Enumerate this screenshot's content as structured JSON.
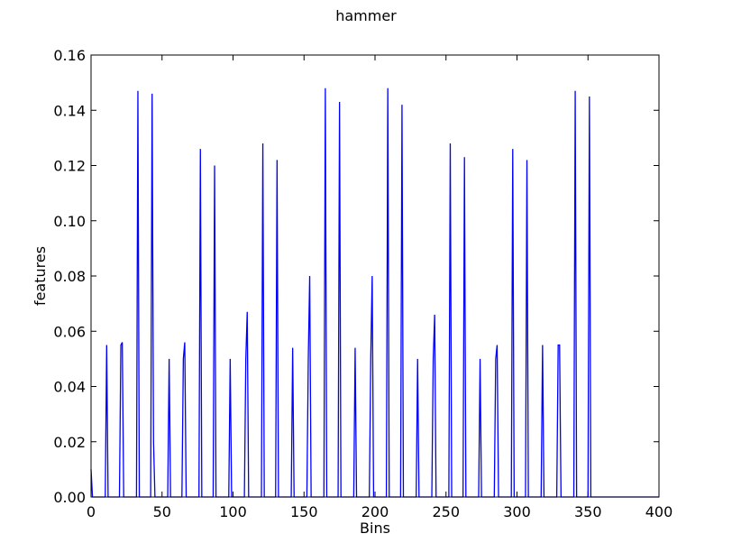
{
  "chart_data": {
    "type": "line",
    "title": "hammer",
    "xlabel": "Bins",
    "ylabel": "features",
    "xlim": [
      0,
      400
    ],
    "ylim": [
      0,
      0.16
    ],
    "grid": false,
    "x_ticks": [
      0,
      50,
      100,
      150,
      200,
      250,
      300,
      350,
      400
    ],
    "x_tick_labels": [
      "0",
      "50",
      "100",
      "150",
      "200",
      "250",
      "300",
      "350",
      "400"
    ],
    "y_ticks": [
      0,
      0.02,
      0.04,
      0.06,
      0.08,
      0.1,
      0.12,
      0.14,
      0.16
    ],
    "y_tick_labels": [
      "0.00",
      "0.02",
      "0.04",
      "0.06",
      "0.08",
      "0.10",
      "0.12",
      "0.14",
      "0.16"
    ],
    "series": [
      {
        "color": "#0000ff",
        "x": [
          0,
          1,
          2,
          10,
          11,
          12,
          20,
          21,
          22,
          23,
          32,
          33,
          34,
          42,
          43,
          44,
          45,
          54,
          55,
          56,
          64,
          65,
          66,
          67,
          76,
          77,
          78,
          86,
          87,
          88,
          97,
          98,
          99,
          108,
          109,
          110,
          111,
          120,
          121,
          122,
          130,
          131,
          132,
          141,
          142,
          143,
          152,
          153,
          154,
          155,
          164,
          165,
          166,
          174,
          175,
          176,
          185,
          186,
          187,
          196,
          197,
          198,
          199,
          208,
          209,
          210,
          218,
          219,
          220,
          229,
          230,
          231,
          240,
          241,
          242,
          243,
          252,
          253,
          254,
          262,
          263,
          264,
          273,
          274,
          275,
          284,
          285,
          286,
          287,
          296,
          297,
          298,
          306,
          307,
          308,
          317,
          318,
          319,
          328,
          329,
          330,
          331,
          340,
          341,
          342,
          350,
          351,
          352,
          400
        ],
        "values": [
          0.01,
          0.0,
          0.0,
          0.0,
          0.055,
          0.0,
          0.0,
          0.055,
          0.056,
          0.0,
          0.0,
          0.147,
          0.0,
          0.0,
          0.146,
          0.02,
          0.0,
          0.0,
          0.05,
          0.0,
          0.0,
          0.05,
          0.056,
          0.0,
          0.0,
          0.126,
          0.0,
          0.0,
          0.12,
          0.0,
          0.0,
          0.05,
          0.0,
          0.0,
          0.05,
          0.067,
          0.0,
          0.0,
          0.128,
          0.0,
          0.0,
          0.122,
          0.0,
          0.0,
          0.054,
          0.0,
          0.0,
          0.05,
          0.08,
          0.0,
          0.0,
          0.148,
          0.0,
          0.0,
          0.143,
          0.0,
          0.0,
          0.054,
          0.0,
          0.0,
          0.05,
          0.08,
          0.0,
          0.0,
          0.148,
          0.0,
          0.0,
          0.142,
          0.0,
          0.0,
          0.05,
          0.0,
          0.0,
          0.05,
          0.066,
          0.0,
          0.0,
          0.128,
          0.0,
          0.0,
          0.123,
          0.0,
          0.0,
          0.05,
          0.0,
          0.0,
          0.05,
          0.055,
          0.0,
          0.0,
          0.126,
          0.0,
          0.0,
          0.122,
          0.0,
          0.0,
          0.055,
          0.0,
          0.0,
          0.055,
          0.055,
          0.0,
          0.0,
          0.147,
          0.0,
          0.0,
          0.145,
          0.0,
          0.0
        ]
      }
    ]
  }
}
